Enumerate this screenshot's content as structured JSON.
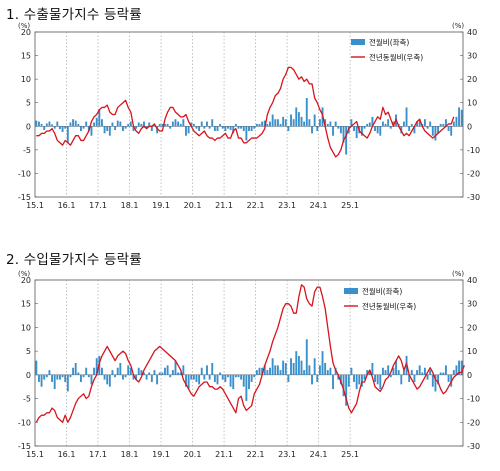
{
  "chart_data": [
    {
      "title": "1. 수출물가지수 등락률",
      "type": "bar",
      "unit_left": "(%)",
      "unit_right": "(%)",
      "left_axis": {
        "ylim": [
          -15,
          20
        ],
        "ticks": [
          "20",
          "15",
          "10",
          "5",
          "0",
          "-5",
          "-10",
          "-15"
        ]
      },
      "right_axis": {
        "ylim": [
          -30,
          40
        ],
        "ticks": [
          "40",
          "30",
          "20",
          "10",
          "0",
          "-10",
          "-20",
          "-30"
        ]
      },
      "x_tick_labels": [
        "15.1",
        "16.1",
        "17.1",
        "18.1",
        "19.1",
        "20.1",
        "21.1",
        "22.1",
        "23.1",
        "24.1",
        "25.1"
      ],
      "legend": {
        "bar_label": "전월비(좌축)",
        "line_label": "전년동월비(우축)",
        "position": "top-right"
      },
      "grid": "dotted vertical at year starts",
      "series": [
        {
          "name": "전월비(좌축)",
          "type": "bar",
          "axis": "left",
          "values": [
            1.2,
            1.0,
            0.5,
            -0.8,
            0.6,
            1.0,
            0.4,
            -0.5,
            1.0,
            -0.6,
            -1.2,
            -0.5,
            -3.5,
            0.8,
            1.5,
            1.2,
            0.5,
            -1.0,
            -0.5,
            1.0,
            -1.0,
            -2.0,
            0.8,
            1.8,
            3.5,
            1.5,
            -1.5,
            -1.0,
            -2.0,
            0.8,
            -0.8,
            1.2,
            1.0,
            -1.0,
            -0.5,
            0.5,
            1.0,
            -1.0,
            -0.5,
            0.8,
            0.5,
            1.0,
            -0.5,
            0.8,
            -1.0,
            0.5,
            -1.5,
            0.5,
            0.5,
            0.5,
            0.5,
            -0.5,
            1.0,
            1.5,
            1.0,
            0.5,
            1.5,
            -2.0,
            -1.5,
            0.8,
            0.5,
            -0.5,
            -1.0,
            1.0,
            -0.5,
            1.0,
            -0.5,
            1.5,
            -1.0,
            -1.0,
            0.5,
            -0.5,
            -1.0,
            -0.5,
            -0.8,
            -1.5,
            0.5,
            -0.5,
            -0.5,
            -1.0,
            -3.0,
            -1.0,
            -1.0,
            -0.5,
            0.5,
            0.5,
            1.0,
            1.2,
            0.5,
            1.0,
            2.5,
            1.5,
            1.5,
            0.5,
            2.0,
            1.5,
            -1.0,
            2.5,
            1.5,
            4.0,
            3.0,
            2.0,
            1.0,
            6.0,
            1.5,
            -1.5,
            2.5,
            -1.0,
            1.5,
            4.0,
            1.5,
            0.5,
            1.0,
            -2.0,
            1.0,
            -0.5,
            -1.5,
            -3.5,
            -6.0,
            -1.5,
            1.5,
            -1.0,
            -2.5,
            -1.5,
            -2.0,
            -0.5,
            0.5,
            0.8,
            2.0,
            -1.0,
            -1.5,
            -2.0,
            1.0,
            0.5,
            1.5,
            -0.5,
            1.0,
            2.5,
            0.5,
            -1.5,
            1.0,
            4.0,
            -1.0,
            0.5,
            -1.5,
            1.0,
            1.5,
            0.5,
            1.5,
            -0.5,
            1.0,
            -2.0,
            -3.0,
            -1.5,
            0.5,
            0.5,
            1.5,
            -1.0,
            -2.0,
            1.0,
            2.0,
            4.0,
            3.5
          ]
        },
        {
          "name": "전년동월비(우축)",
          "type": "line",
          "axis": "right",
          "values": [
            -4,
            -4,
            -3,
            -3,
            -2,
            -2,
            -1,
            -3,
            -6,
            -7,
            -8,
            -6,
            -7,
            -8,
            -6,
            -4,
            -4,
            -6,
            -6,
            -4,
            -2,
            2,
            4,
            5,
            7,
            8,
            8,
            9,
            6,
            5,
            5,
            8,
            9,
            10,
            11,
            8,
            6,
            0,
            -2,
            -3,
            -1,
            0,
            -1,
            0,
            0,
            1,
            -1,
            -2,
            -2,
            3,
            6,
            8,
            8,
            6,
            5,
            4,
            4,
            5,
            2,
            0,
            -2,
            -3,
            -4,
            -3,
            -2,
            -4,
            -5,
            -5,
            -6,
            -5,
            -5,
            -4,
            -3,
            -5,
            -5,
            -2,
            -1,
            -5,
            -5,
            -7,
            -7,
            -6,
            -5,
            -5,
            -5,
            -4,
            -3,
            -1,
            5,
            8,
            10,
            13,
            14,
            16,
            20,
            22,
            25,
            25,
            24,
            22,
            20,
            21,
            19,
            20,
            18,
            18,
            12,
            10,
            7,
            5,
            0,
            -5,
            -9,
            -11,
            -13,
            -12,
            -10,
            -6,
            -4,
            -1,
            0,
            1,
            2,
            -2,
            -3,
            -4,
            -5,
            -3,
            0,
            2,
            4,
            3,
            8,
            5,
            6,
            3,
            0,
            3,
            0,
            -2,
            -4,
            -3,
            -4,
            -2,
            0,
            2,
            3,
            0,
            -2,
            -3,
            -4,
            -5,
            -4,
            -3,
            -2,
            -1,
            0,
            1,
            1,
            4
          ]
        }
      ]
    },
    {
      "title": "2. 수입물가지수 등락률",
      "type": "bar",
      "unit_left": "(%)",
      "unit_right": "(%)",
      "left_axis": {
        "ylim": [
          -15,
          20
        ],
        "ticks": [
          "20",
          "15",
          "10",
          "5",
          "0",
          "-5",
          "-10",
          "-15"
        ]
      },
      "right_axis": {
        "ylim": [
          -30,
          40
        ],
        "ticks": [
          "40",
          "30",
          "20",
          "10",
          "0",
          "-10",
          "-20",
          "-30"
        ]
      },
      "x_tick_labels": [
        "15.1",
        "16.1",
        "17.1",
        "18.1",
        "19.1",
        "20.1",
        "21.1",
        "22.1",
        "23.1",
        "24.1",
        "25.1"
      ],
      "legend": {
        "bar_label": "전월비(좌축)",
        "line_label": "전년동월비(우축)",
        "position": "top-right"
      },
      "grid": "dotted vertical at year starts",
      "series": [
        {
          "name": "전월비(좌축)",
          "type": "bar",
          "axis": "left",
          "values": [
            3.0,
            -1.5,
            -2.5,
            -1.0,
            -0.5,
            1.0,
            -1.5,
            -3.0,
            -1.0,
            -1.0,
            -0.5,
            -1.5,
            -3.5,
            -0.5,
            1.5,
            2.5,
            0.5,
            -1.5,
            -0.5,
            1.5,
            -0.5,
            -2.0,
            1.5,
            3.5,
            4.0,
            1.5,
            -1.0,
            -2.0,
            -2.5,
            1.0,
            -0.5,
            1.5,
            2.5,
            -1.0,
            -0.5,
            2.0,
            1.5,
            -1.0,
            -1.0,
            1.5,
            1.0,
            0.5,
            -1.0,
            0.5,
            -1.5,
            1.0,
            -2.0,
            0.5,
            0.5,
            1.5,
            2.0,
            -0.5,
            1.0,
            3.0,
            0.5,
            0.5,
            2.0,
            -2.5,
            -3.0,
            -1.0,
            -1.0,
            -1.5,
            -2.0,
            1.5,
            -1.0,
            2.0,
            -1.0,
            2.5,
            -1.5,
            -2.0,
            0.5,
            -1.0,
            -1.5,
            -0.5,
            -2.5,
            -3.0,
            -0.5,
            -0.5,
            -1.0,
            -2.5,
            -5.5,
            -3.0,
            -1.5,
            -0.5,
            1.0,
            1.5,
            1.5,
            2.0,
            1.0,
            1.5,
            3.5,
            2.0,
            2.0,
            1.0,
            3.0,
            2.5,
            -1.5,
            3.5,
            2.5,
            5.0,
            4.0,
            3.0,
            1.0,
            7.5,
            2.0,
            -2.0,
            3.5,
            -1.5,
            2.0,
            5.0,
            2.5,
            1.0,
            1.5,
            -3.0,
            1.5,
            -1.0,
            -2.0,
            -4.5,
            -6.5,
            -2.5,
            1.5,
            -1.5,
            -3.0,
            -2.0,
            -2.5,
            -1.0,
            1.0,
            1.0,
            2.5,
            -1.5,
            -2.0,
            -3.0,
            1.5,
            1.0,
            2.0,
            -0.5,
            1.5,
            3.0,
            1.0,
            -2.0,
            1.0,
            4.0,
            -1.5,
            1.0,
            -1.5,
            1.0,
            2.0,
            0.5,
            1.5,
            -1.0,
            1.0,
            -2.5,
            -3.5,
            -2.0,
            0.5,
            0.5,
            2.0,
            -1.5,
            -2.5,
            1.0,
            2.0,
            3.0,
            3.0
          ]
        },
        {
          "name": "전년동월비(우축)",
          "type": "line",
          "axis": "right",
          "values": [
            -20,
            -18,
            -17,
            -17,
            -16,
            -16,
            -14,
            -15,
            -18,
            -19,
            -20,
            -17,
            -20,
            -18,
            -15,
            -12,
            -10,
            -9,
            -8,
            -10,
            -9,
            -5,
            -2,
            0,
            5,
            8,
            10,
            12,
            10,
            8,
            6,
            8,
            9,
            10,
            9,
            6,
            4,
            0,
            -2,
            -3,
            -1,
            2,
            4,
            6,
            8,
            10,
            11,
            12,
            11,
            10,
            9,
            8,
            7,
            6,
            4,
            2,
            -2,
            -4,
            -6,
            -8,
            -9,
            -7,
            -5,
            -4,
            -3,
            -3,
            -5,
            -5,
            -6,
            -6,
            -5,
            -6,
            -8,
            -10,
            -12,
            -14,
            -16,
            -10,
            -9,
            -13,
            -15,
            -14,
            -13,
            -8,
            -6,
            -4,
            0,
            4,
            7,
            10,
            14,
            17,
            20,
            24,
            28,
            30,
            30,
            29,
            26,
            26,
            33,
            38,
            37,
            32,
            30,
            29,
            35,
            37,
            37,
            33,
            28,
            20,
            12,
            5,
            2,
            0,
            -3,
            -6,
            -10,
            -14,
            -16,
            -14,
            -12,
            -7,
            -3,
            -3,
            0,
            2,
            -1,
            -5,
            -6,
            -7,
            -5,
            -2,
            -1,
            1,
            4,
            6,
            8,
            6,
            2,
            5,
            0,
            -2,
            -4,
            -6,
            -5,
            -3,
            -1,
            1,
            3,
            1,
            -2,
            -3,
            -6,
            -8,
            -7,
            -5,
            -3,
            -1,
            0,
            1,
            1,
            4
          ]
        }
      ]
    }
  ]
}
